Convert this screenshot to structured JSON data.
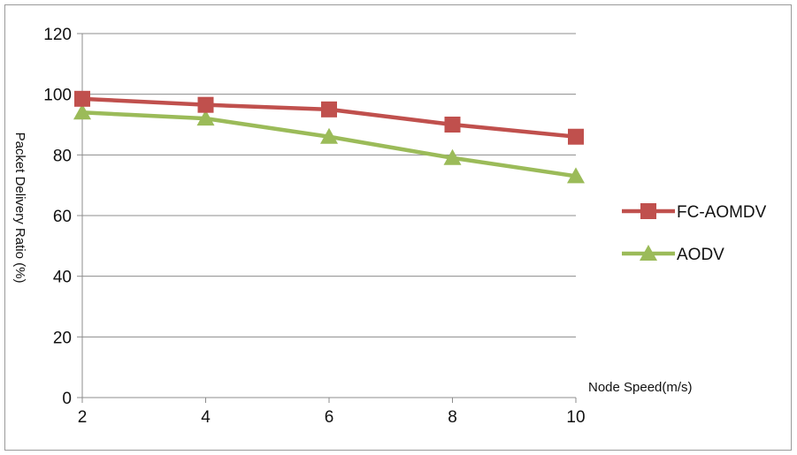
{
  "chart_data": {
    "type": "line",
    "title": "",
    "xlabel": "Node Speed(m/s)",
    "ylabel": "Packet Delivery Ratio (%)",
    "x": [
      2,
      4,
      6,
      8,
      10
    ],
    "xlim": [
      2,
      10
    ],
    "ylim": [
      0,
      120
    ],
    "yticks": [
      "0",
      "20",
      "40",
      "60",
      "80",
      "100",
      "120"
    ],
    "xticks": [
      "2",
      "4",
      "6",
      "8",
      "10"
    ],
    "grid": "horizontal",
    "legend_position": "right",
    "series": [
      {
        "name": "FC-AOMDV",
        "values": [
          98.5,
          96.5,
          95,
          90,
          86
        ],
        "color": "#c0504d",
        "marker": "square"
      },
      {
        "name": "AODV",
        "values": [
          94,
          92,
          86,
          79,
          73
        ],
        "color": "#9bbb59",
        "marker": "triangle"
      }
    ]
  }
}
